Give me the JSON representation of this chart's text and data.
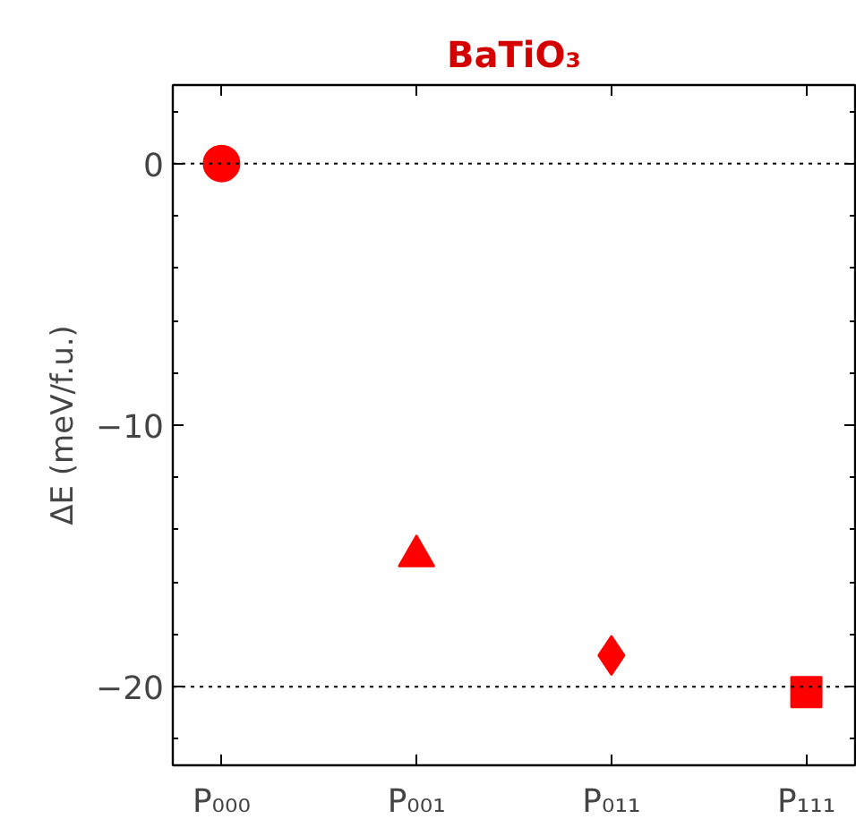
{
  "chart_data": {
    "type": "scatter",
    "title": "BaTiO₃",
    "ylabel": "ΔE (meV/f.u.)",
    "categories": [
      "P₀₀₀",
      "P₀₀₁",
      "P₀₁₁",
      "P₁₁₁"
    ],
    "series": [
      {
        "color": "#ff0000",
        "marker": "circle",
        "values": [
          0,
          null,
          null,
          null
        ]
      },
      {
        "color": "#ff0000",
        "marker": "triangle",
        "values": [
          null,
          -15,
          null,
          null
        ]
      },
      {
        "color": "#ff0000",
        "marker": "diamond",
        "values": [
          null,
          null,
          -18.8,
          null
        ]
      },
      {
        "color": "#ff0000",
        "marker": "square",
        "values": [
          null,
          null,
          null,
          -20.2
        ]
      }
    ],
    "ylim": [
      -23,
      3
    ],
    "yticks": [
      0,
      {
        "value": -10,
        "label": "−10"
      },
      {
        "value": -20,
        "label": "−20"
      }
    ],
    "ref_lines": [
      {
        "axis": "y",
        "value": 0,
        "line_style": "dotted",
        "color": "#000000"
      },
      {
        "axis": "y",
        "value": -20,
        "line_style": "dotted",
        "color": "#000000"
      }
    ],
    "grid": false
  }
}
